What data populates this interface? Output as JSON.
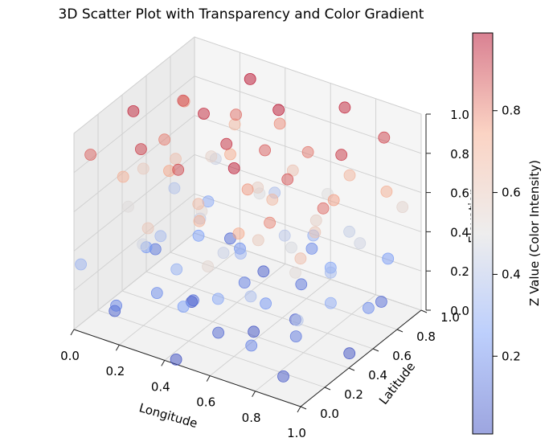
{
  "chart_data": {
    "type": "scatter",
    "projection": "3d",
    "title": "3D Scatter Plot with Transparency and Color Gradient",
    "xlabel": "Longitude",
    "ylabel": "Latitude",
    "zlabel": "Elevation",
    "xlim": [
      0,
      1
    ],
    "ylim": [
      0,
      1
    ],
    "zlim": [
      0,
      1
    ],
    "xticks": [
      "0.0",
      "0.2",
      "0.4",
      "0.6",
      "0.8",
      "1.0"
    ],
    "yticks": [
      "0.0",
      "0.2",
      "0.4",
      "0.6",
      "0.8",
      "1.0"
    ],
    "zticks": [
      "0.0",
      "0.2",
      "0.4",
      "0.6",
      "0.8",
      "1.0"
    ],
    "grid": true,
    "colormap": "coolwarm",
    "alpha": 0.5,
    "colorbar": {
      "label": "Z Value (Color Intensity)",
      "range": [
        0.01,
        0.99
      ],
      "ticks": [
        "0.2",
        "0.4",
        "0.6",
        "0.8"
      ],
      "tick_values": [
        0.2,
        0.4,
        0.6,
        0.8
      ]
    },
    "points": [
      {
        "x": 0.32,
        "y": 0.86,
        "z": 0.98
      },
      {
        "x": 0.52,
        "y": 0.72,
        "z": 0.97
      },
      {
        "x": 0.7,
        "y": 0.93,
        "z": 0.95
      },
      {
        "x": 0.28,
        "y": 0.55,
        "z": 0.94
      },
      {
        "x": 0.46,
        "y": 0.4,
        "z": 0.93
      },
      {
        "x": 0.06,
        "y": 0.38,
        "z": 0.95
      },
      {
        "x": 0.85,
        "y": 0.62,
        "z": 0.92
      },
      {
        "x": 0.2,
        "y": 0.18,
        "z": 0.91
      },
      {
        "x": 0.6,
        "y": 0.2,
        "z": 0.96
      },
      {
        "x": 0.9,
        "y": 0.88,
        "z": 0.9
      },
      {
        "x": 0.38,
        "y": 0.15,
        "z": 0.89
      },
      {
        "x": 0.12,
        "y": 0.68,
        "z": 0.88
      },
      {
        "x": 0.74,
        "y": 0.38,
        "z": 0.87
      },
      {
        "x": 0.55,
        "y": 0.55,
        "z": 0.86
      },
      {
        "x": 0.02,
        "y": 0.1,
        "z": 0.85
      },
      {
        "x": 0.94,
        "y": 0.3,
        "z": 0.84
      },
      {
        "x": 0.3,
        "y": 0.78,
        "z": 0.83
      },
      {
        "x": 0.66,
        "y": 0.7,
        "z": 0.82
      },
      {
        "x": 0.16,
        "y": 0.45,
        "z": 0.81
      },
      {
        "x": 0.8,
        "y": 0.12,
        "z": 0.8
      },
      {
        "x": 0.44,
        "y": 0.88,
        "z": 0.79
      },
      {
        "x": 0.05,
        "y": 0.82,
        "z": 0.78
      },
      {
        "x": 0.58,
        "y": 0.35,
        "z": 0.77
      },
      {
        "x": 0.88,
        "y": 0.5,
        "z": 0.76
      },
      {
        "x": 0.25,
        "y": 0.32,
        "z": 0.75
      },
      {
        "x": 0.7,
        "y": 0.05,
        "z": 0.74
      },
      {
        "x": 0.36,
        "y": 0.62,
        "z": 0.73
      },
      {
        "x": 0.98,
        "y": 0.75,
        "z": 0.72
      },
      {
        "x": 0.1,
        "y": 0.22,
        "z": 0.71
      },
      {
        "x": 0.5,
        "y": 0.1,
        "z": 0.7
      },
      {
        "x": 0.78,
        "y": 0.82,
        "z": 0.69
      },
      {
        "x": 0.22,
        "y": 0.92,
        "z": 0.68
      },
      {
        "x": 0.62,
        "y": 0.48,
        "z": 0.67
      },
      {
        "x": 0.4,
        "y": 0.28,
        "z": 0.66
      },
      {
        "x": 0.92,
        "y": 0.15,
        "z": 0.65
      },
      {
        "x": 0.14,
        "y": 0.58,
        "z": 0.64
      },
      {
        "x": 0.54,
        "y": 0.8,
        "z": 0.63
      },
      {
        "x": 0.84,
        "y": 0.42,
        "z": 0.62
      },
      {
        "x": 0.3,
        "y": 0.05,
        "z": 0.61
      },
      {
        "x": 0.68,
        "y": 0.25,
        "z": 0.6
      },
      {
        "x": 0.04,
        "y": 0.5,
        "z": 0.59
      },
      {
        "x": 0.46,
        "y": 0.66,
        "z": 0.58
      },
      {
        "x": 0.76,
        "y": 0.58,
        "z": 0.57
      },
      {
        "x": 0.18,
        "y": 0.8,
        "z": 0.56
      },
      {
        "x": 0.96,
        "y": 0.92,
        "z": 0.55
      },
      {
        "x": 0.58,
        "y": 0.02,
        "z": 0.54
      },
      {
        "x": 0.34,
        "y": 0.42,
        "z": 0.53
      },
      {
        "x": 0.86,
        "y": 0.22,
        "z": 0.52
      },
      {
        "x": 0.08,
        "y": 0.3,
        "z": 0.51
      },
      {
        "x": 0.64,
        "y": 0.9,
        "z": 0.5
      },
      {
        "x": 0.42,
        "y": 0.75,
        "z": 0.49
      },
      {
        "x": 0.72,
        "y": 0.45,
        "z": 0.48
      },
      {
        "x": 0.24,
        "y": 0.12,
        "z": 0.47
      },
      {
        "x": 0.9,
        "y": 0.68,
        "z": 0.46
      },
      {
        "x": 0.12,
        "y": 0.95,
        "z": 0.45
      },
      {
        "x": 0.5,
        "y": 0.3,
        "z": 0.44
      },
      {
        "x": 0.8,
        "y": 0.78,
        "z": 0.43
      },
      {
        "x": 0.28,
        "y": 0.52,
        "z": 0.42
      },
      {
        "x": 0.6,
        "y": 0.62,
        "z": 0.41
      },
      {
        "x": 0.96,
        "y": 0.05,
        "z": 0.4
      },
      {
        "x": 0.06,
        "y": 0.72,
        "z": 0.39
      },
      {
        "x": 0.38,
        "y": 0.95,
        "z": 0.38
      },
      {
        "x": 0.7,
        "y": 0.15,
        "z": 0.37
      },
      {
        "x": 0.18,
        "y": 0.38,
        "z": 0.36
      },
      {
        "x": 0.84,
        "y": 0.55,
        "z": 0.35
      },
      {
        "x": 0.48,
        "y": 0.48,
        "z": 0.34
      },
      {
        "x": 0.02,
        "y": 0.02,
        "z": 0.33
      },
      {
        "x": 0.62,
        "y": 0.82,
        "z": 0.32
      },
      {
        "x": 0.32,
        "y": 0.25,
        "z": 0.31
      },
      {
        "x": 0.92,
        "y": 0.4,
        "z": 0.3
      },
      {
        "x": 0.14,
        "y": 0.85,
        "z": 0.29
      },
      {
        "x": 0.54,
        "y": 0.18,
        "z": 0.28
      },
      {
        "x": 0.76,
        "y": 0.7,
        "z": 0.27
      },
      {
        "x": 0.22,
        "y": 0.62,
        "z": 0.26
      },
      {
        "x": 0.44,
        "y": 0.08,
        "z": 0.25
      },
      {
        "x": 0.88,
        "y": 0.95,
        "z": 0.24
      },
      {
        "x": 0.08,
        "y": 0.45,
        "z": 0.23
      },
      {
        "x": 0.66,
        "y": 0.35,
        "z": 0.22
      },
      {
        "x": 0.36,
        "y": 0.7,
        "z": 0.21
      },
      {
        "x": 0.98,
        "y": 0.6,
        "z": 0.2
      },
      {
        "x": 0.26,
        "y": 0.2,
        "z": 0.19
      },
      {
        "x": 0.56,
        "y": 0.92,
        "z": 0.18
      },
      {
        "x": 0.74,
        "y": 0.08,
        "z": 0.17
      },
      {
        "x": 0.16,
        "y": 0.05,
        "z": 0.16
      },
      {
        "x": 0.46,
        "y": 0.55,
        "z": 0.15
      },
      {
        "x": 0.82,
        "y": 0.3,
        "z": 0.14
      },
      {
        "x": 0.04,
        "y": 0.6,
        "z": 0.13
      },
      {
        "x": 0.62,
        "y": 0.72,
        "z": 0.12
      },
      {
        "x": 0.34,
        "y": 0.35,
        "z": 0.11
      },
      {
        "x": 0.92,
        "y": 0.82,
        "z": 0.1
      },
      {
        "x": 0.2,
        "y": 0.92,
        "z": 0.09
      },
      {
        "x": 0.52,
        "y": 0.22,
        "z": 0.08
      },
      {
        "x": 0.7,
        "y": 0.52,
        "z": 0.07
      },
      {
        "x": 0.1,
        "y": 0.15,
        "z": 0.06
      },
      {
        "x": 0.4,
        "y": 0.82,
        "z": 0.05
      },
      {
        "x": 0.86,
        "y": 0.12,
        "z": 0.04
      },
      {
        "x": 0.28,
        "y": 0.45,
        "z": 0.03
      },
      {
        "x": 0.58,
        "y": 0.4,
        "z": 0.02
      },
      {
        "x": 0.96,
        "y": 0.48,
        "z": 0.02
      },
      {
        "x": 0.44,
        "y": 0.02,
        "z": 0.01
      }
    ]
  }
}
